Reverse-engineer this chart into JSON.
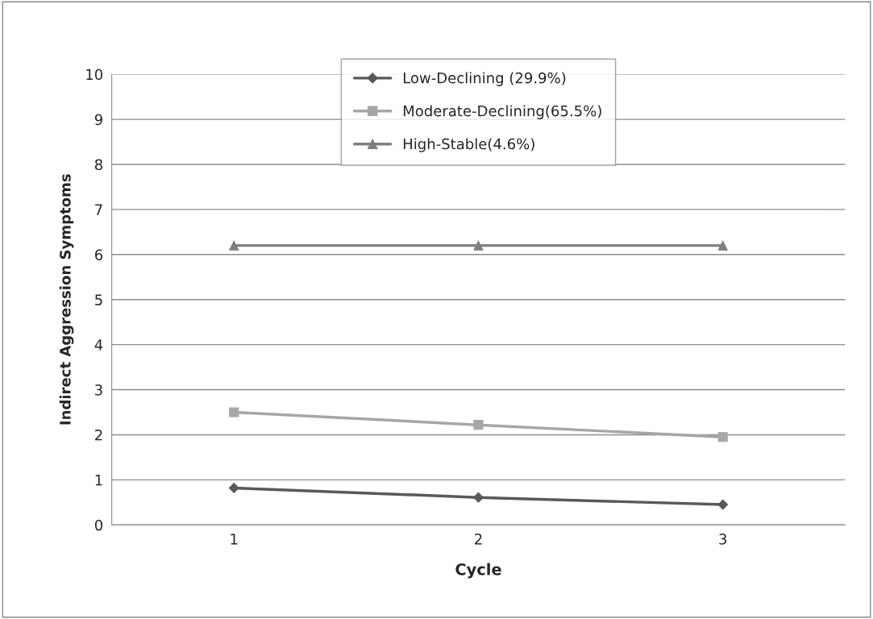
{
  "chart_data": {
    "type": "line",
    "xlabel": "Cycle",
    "ylabel": "Indirect Aggression Symptoms",
    "categories": [
      "1",
      "2",
      "3"
    ],
    "series": [
      {
        "name": "Low-Declining (29.9%)",
        "color": "#595959",
        "marker": "diamond",
        "values": [
          0.82,
          0.61,
          0.45
        ]
      },
      {
        "name": "Moderate-Declining(65.5%)",
        "color": "#a6a6a6",
        "marker": "square",
        "values": [
          2.5,
          2.22,
          1.95
        ]
      },
      {
        "name": "High-Stable(4.6%)",
        "color": "#808080",
        "marker": "triangle",
        "values": [
          6.2,
          6.2,
          6.2
        ]
      }
    ],
    "ylim": [
      0,
      10
    ],
    "yticks": [
      0,
      1,
      2,
      3,
      4,
      5,
      6,
      7,
      8,
      9,
      10
    ],
    "grid": "y",
    "legend": "top",
    "line_style": "solid"
  }
}
